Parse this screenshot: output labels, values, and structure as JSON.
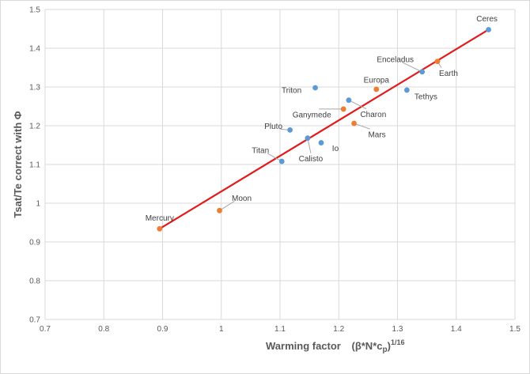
{
  "chart_data": {
    "type": "scatter",
    "title": "",
    "xlabel": "Warming factor",
    "xlabel_formula": "(β*N*c",
    "xlabel_sub": "p",
    "xlabel_close": ")",
    "xlabel_sup": "1/16",
    "ylabel": "Tsat/Te correct with Φ",
    "xlim": [
      0.7,
      1.5
    ],
    "ylim": [
      0.7,
      1.5
    ],
    "xticks": [
      "0.7",
      "0.8",
      "0.9",
      "1",
      "1.1",
      "1.2",
      "1.3",
      "1.4",
      "1.5"
    ],
    "yticks": [
      "0.7",
      "0.8",
      "0.9",
      "1",
      "1.1",
      "1.2",
      "1.3",
      "1.4",
      "1.5"
    ],
    "grid": true,
    "colors": {
      "blue": "#5b9bd5",
      "orange": "#ed7d31",
      "trend": "#e31a1c",
      "grid": "#d9d9d9"
    },
    "series": [
      {
        "color": "blue",
        "points": [
          {
            "label": "Ceres",
            "x": 1.455,
            "y": 1.448
          },
          {
            "label": "Enceladus",
            "x": 1.342,
            "y": 1.339
          },
          {
            "label": "Tethys",
            "x": 1.316,
            "y": 1.292
          },
          {
            "label": "Triton",
            "x": 1.16,
            "y": 1.298
          },
          {
            "label": "Charon",
            "x": 1.217,
            "y": 1.266
          },
          {
            "label": "Pluto",
            "x": 1.117,
            "y": 1.189
          },
          {
            "label": "Calisto",
            "x": 1.147,
            "y": 1.168
          },
          {
            "label": "Io",
            "x": 1.17,
            "y": 1.156
          },
          {
            "label": "Titan",
            "x": 1.103,
            "y": 1.108
          }
        ]
      },
      {
        "color": "orange",
        "points": [
          {
            "label": "Earth",
            "x": 1.368,
            "y": 1.366
          },
          {
            "label": "Europa",
            "x": 1.264,
            "y": 1.294
          },
          {
            "label": "Ganymede",
            "x": 1.208,
            "y": 1.243
          },
          {
            "label": "Mars",
            "x": 1.226,
            "y": 1.206
          },
          {
            "label": "Moon",
            "x": 0.997,
            "y": 0.981
          },
          {
            "label": "Mercury",
            "x": 0.895,
            "y": 0.934
          }
        ]
      }
    ],
    "trendline": {
      "x": [
        0.895,
        1.455
      ],
      "y": [
        0.934,
        1.448
      ]
    }
  }
}
